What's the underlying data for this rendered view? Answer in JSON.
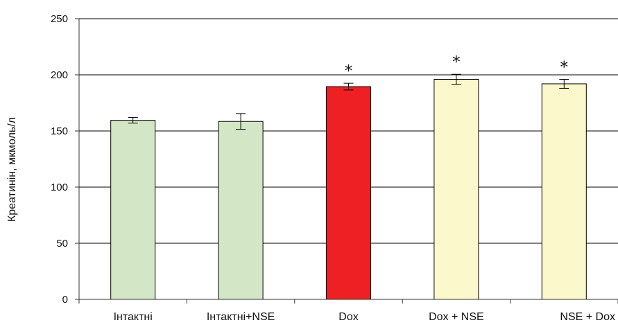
{
  "chart_data": {
    "type": "bar",
    "ylabel": "Креатинін, мкмоль/л",
    "ylim": [
      0,
      250
    ],
    "yticks": [
      "0",
      "50",
      "100",
      "150",
      "200",
      "250"
    ],
    "grid": true,
    "categories": [
      "Інтактні",
      "Інтактні+NSE",
      "Dox",
      "Dox + NSE",
      "NSE + Dox"
    ],
    "values": [
      159.5,
      158.5,
      189.5,
      196,
      192
    ],
    "errors": [
      2.5,
      7,
      3,
      4.5,
      4
    ],
    "annotations": [
      "",
      "",
      "*",
      "*",
      "*"
    ],
    "colors": [
      "#d3e6c6",
      "#d3e6c6",
      "#ee2024",
      "#fbf8cb",
      "#fbf8cb"
    ]
  }
}
